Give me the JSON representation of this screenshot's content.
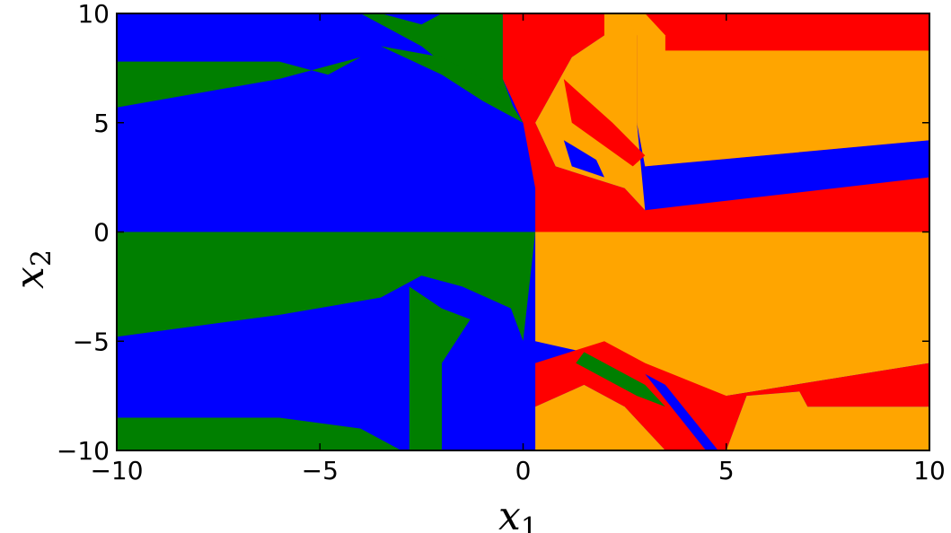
{
  "chart_data": {
    "type": "heatmap",
    "title": "",
    "xlabel": "x",
    "xlabel_sub": "1",
    "ylabel": "x",
    "ylabel_sub": "2",
    "xlim": [
      -10,
      10
    ],
    "ylim": [
      -10,
      10
    ],
    "x_ticks": [
      {
        "value": -10,
        "label": "−10"
      },
      {
        "value": -5,
        "label": "−5"
      },
      {
        "value": 0,
        "label": "0"
      },
      {
        "value": 5,
        "label": "5"
      },
      {
        "value": 10,
        "label": "10"
      }
    ],
    "y_ticks": [
      {
        "value": -10,
        "label": "−10"
      },
      {
        "value": -5,
        "label": "−5"
      },
      {
        "value": 0,
        "label": "0"
      },
      {
        "value": 5,
        "label": "5"
      },
      {
        "value": 10,
        "label": "10"
      }
    ],
    "grid": false,
    "legend": "none",
    "colors": {
      "blue": "#0000ff",
      "green": "#007f00",
      "red": "#ff0000",
      "orange": "#ffa500"
    },
    "regions": [
      {
        "name": "blue-upper-left",
        "color": "blue",
        "points": [
          [
            -10,
            0
          ],
          [
            -10,
            5.7
          ],
          [
            -6,
            7
          ],
          [
            -4,
            8
          ],
          [
            -4,
            10
          ],
          [
            -0.5,
            10
          ],
          [
            -0.5,
            7
          ],
          [
            0,
            5
          ],
          [
            0.3,
            2
          ],
          [
            0.2,
            0
          ]
        ]
      },
      {
        "name": "green-top-left-band",
        "color": "green",
        "points": [
          [
            -10,
            5.7
          ],
          [
            -10,
            7.8
          ],
          [
            -6,
            7.8
          ],
          [
            -4.8,
            7.2
          ],
          [
            -4,
            8
          ],
          [
            -6,
            7
          ]
        ]
      },
      {
        "name": "green-upper-mid-wedge",
        "color": "green",
        "points": [
          [
            -4,
            10
          ],
          [
            -3.5,
            10
          ],
          [
            -2.5,
            9.5
          ],
          [
            -2,
            10
          ],
          [
            -0.5,
            10
          ],
          [
            -0.5,
            7
          ],
          [
            -0.2,
            5.5
          ],
          [
            -1.5,
            7
          ],
          [
            -2.5,
            8.5
          ]
        ]
      },
      {
        "name": "green-upper-streak",
        "color": "green",
        "points": [
          [
            -3.5,
            8.5
          ],
          [
            -2,
            7.2
          ],
          [
            -1,
            6
          ],
          [
            0,
            5
          ],
          [
            -0.5,
            6.5
          ],
          [
            -2,
            8
          ]
        ]
      },
      {
        "name": "red-upper-right",
        "color": "red",
        "points": [
          [
            0,
            10
          ],
          [
            2,
            10
          ],
          [
            2,
            9
          ],
          [
            1.2,
            8
          ],
          [
            0.3,
            5
          ],
          [
            0.8,
            3
          ],
          [
            2.5,
            2
          ],
          [
            3,
            1
          ],
          [
            10,
            2.5
          ],
          [
            10,
            4.2
          ],
          [
            3,
            3
          ],
          [
            2.8,
            5
          ],
          [
            2.8,
            9
          ],
          [
            3,
            10
          ],
          [
            10,
            10
          ],
          [
            10,
            0
          ],
          [
            0.3,
            0
          ],
          [
            0.3,
            2
          ],
          [
            0,
            5
          ],
          [
            -0.5,
            7
          ],
          [
            -0.5,
            10
          ]
        ]
      },
      {
        "name": "orange-upper-right",
        "color": "orange",
        "points": [
          [
            2,
            10
          ],
          [
            3,
            10
          ],
          [
            3.5,
            9
          ],
          [
            10,
            8.3
          ],
          [
            10,
            4.2
          ],
          [
            3,
            3
          ],
          [
            2.8,
            5
          ],
          [
            2.8,
            9
          ]
        ]
      },
      {
        "name": "orange-upper-mid-slab",
        "color": "orange",
        "points": [
          [
            0.8,
            3
          ],
          [
            0.3,
            5
          ],
          [
            1.2,
            8
          ],
          [
            2,
            9
          ],
          [
            2,
            10
          ],
          [
            2.5,
            10
          ],
          [
            2.8,
            9
          ],
          [
            2.8,
            5
          ],
          [
            3,
            1
          ],
          [
            2.5,
            2
          ]
        ]
      },
      {
        "name": "red-upper-thin-band",
        "color": "red",
        "points": [
          [
            3.5,
            9
          ],
          [
            10,
            9
          ],
          [
            10,
            8.3
          ],
          [
            3.5,
            8.3
          ]
        ]
      },
      {
        "name": "red-upper-spike",
        "color": "red",
        "points": [
          [
            1,
            7
          ],
          [
            1.2,
            5
          ],
          [
            2.7,
            3
          ],
          [
            3,
            3.5
          ],
          [
            2.2,
            5
          ]
        ]
      },
      {
        "name": "blue-upper-spike",
        "color": "blue",
        "points": [
          [
            1,
            4.2
          ],
          [
            1.2,
            3
          ],
          [
            2,
            2.5
          ],
          [
            1.8,
            3.3
          ]
        ]
      },
      {
        "name": "green-lower-left",
        "color": "green",
        "points": [
          [
            -10,
            0
          ],
          [
            -10,
            -4.8
          ],
          [
            -6,
            -3.8
          ],
          [
            -3.5,
            -3
          ],
          [
            -2.5,
            -2
          ],
          [
            -1.5,
            -2.5
          ],
          [
            -0.3,
            -3.5
          ],
          [
            0,
            -5
          ],
          [
            0.3,
            0
          ]
        ]
      },
      {
        "name": "blue-lower-left",
        "color": "blue",
        "points": [
          [
            -10,
            -4.8
          ],
          [
            -10,
            -8.5
          ],
          [
            -6,
            -8.5
          ],
          [
            -4,
            -9
          ],
          [
            -3,
            -10
          ],
          [
            0.3,
            -10
          ],
          [
            0.3,
            -8
          ],
          [
            0,
            -5
          ],
          [
            -0.3,
            -3.5
          ],
          [
            -1.5,
            -2.5
          ],
          [
            -2.5,
            -2
          ],
          [
            -3.5,
            -3
          ],
          [
            -6,
            -3.8
          ]
        ]
      },
      {
        "name": "green-bottom-band",
        "color": "green",
        "points": [
          [
            -10,
            -8.5
          ],
          [
            -10,
            -10
          ],
          [
            -3,
            -10
          ],
          [
            -4,
            -9
          ],
          [
            -6,
            -8.5
          ]
        ]
      },
      {
        "name": "green-lower-wedge",
        "color": "green",
        "points": [
          [
            -2.8,
            -2.5
          ],
          [
            -2.8,
            -10
          ],
          [
            -2,
            -10
          ],
          [
            -2,
            -6
          ],
          [
            -1.3,
            -4
          ],
          [
            -2,
            -3.5
          ]
        ]
      },
      {
        "name": "orange-lower-right",
        "color": "orange",
        "points": [
          [
            0.3,
            0
          ],
          [
            10,
            0
          ],
          [
            10,
            -6
          ],
          [
            5,
            -7.5
          ],
          [
            3,
            -6.5
          ],
          [
            1.5,
            -5.5
          ],
          [
            0.3,
            -5
          ]
        ]
      },
      {
        "name": "red-lower-right",
        "color": "red",
        "points": [
          [
            0.3,
            -6
          ],
          [
            2,
            -5
          ],
          [
            3,
            -6
          ],
          [
            5,
            -7.5
          ],
          [
            10,
            -6
          ],
          [
            10,
            -8
          ],
          [
            7,
            -8
          ],
          [
            6.8,
            -7.3
          ],
          [
            5.5,
            -7.5
          ],
          [
            5,
            -10
          ],
          [
            3.5,
            -10
          ],
          [
            2.5,
            -8
          ],
          [
            1.5,
            -7
          ],
          [
            0.3,
            -8
          ]
        ]
      },
      {
        "name": "orange-lower-bottom",
        "color": "orange",
        "points": [
          [
            0.3,
            -8
          ],
          [
            1.5,
            -7
          ],
          [
            2.5,
            -8
          ],
          [
            3.5,
            -10
          ],
          [
            0.3,
            -10
          ]
        ]
      },
      {
        "name": "orange-lower-bottom-right",
        "color": "orange",
        "points": [
          [
            5,
            -10
          ],
          [
            5.5,
            -7.5
          ],
          [
            6.8,
            -7.3
          ],
          [
            7,
            -8
          ],
          [
            10,
            -8
          ],
          [
            10,
            -10
          ]
        ]
      },
      {
        "name": "blue-lower-right-spike",
        "color": "blue",
        "points": [
          [
            3,
            -6.5
          ],
          [
            4.5,
            -10
          ],
          [
            4.8,
            -10
          ],
          [
            3.5,
            -7
          ]
        ]
      },
      {
        "name": "green-lower-right-streak",
        "color": "green",
        "points": [
          [
            1.5,
            -5.5
          ],
          [
            3,
            -7
          ],
          [
            3.5,
            -8
          ],
          [
            2.8,
            -7.5
          ],
          [
            1.3,
            -6
          ]
        ]
      }
    ]
  }
}
